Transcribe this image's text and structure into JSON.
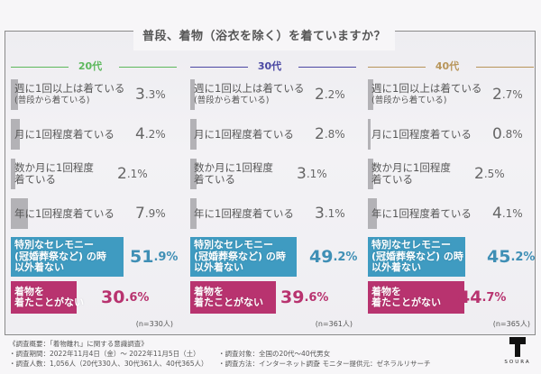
{
  "title": "普段、着物（浴衣を除く）を着ていますか？",
  "chart_data": {
    "type": "bar",
    "orientation": "horizontal",
    "title": "普段、着物（浴衣を除く）を着ていますか？",
    "unit": "%",
    "categories": [
      "週に1回以上は着ている（普段から着ている）",
      "月に1回程度着ている",
      "数か月に1回程度着ている",
      "年に1回程度着ている",
      "特別なセレモニー（冠婚葬祭など）の時以外着ない",
      "着物を着たことがない"
    ],
    "series": [
      {
        "name": "20代",
        "values": [
          3.3,
          4.2,
          2.1,
          7.9,
          51.9,
          30.6
        ],
        "n": "(n=330人)"
      },
      {
        "name": "30代",
        "values": [
          2.2,
          2.8,
          3.1,
          3.1,
          49.2,
          39.6
        ],
        "n": "(n=361人)"
      },
      {
        "name": "40代",
        "values": [
          2.7,
          0.8,
          2.5,
          4.1,
          45.2,
          44.7
        ],
        "n": "(n=365人)"
      }
    ]
  },
  "columns": [
    {
      "label": "20代",
      "color": "#5cb85c",
      "n": "(n=330人)",
      "rows": [
        {
          "line1": "週に1回以上は着ている",
          "line2": "(普段から着ている)",
          "int": "3",
          "dec": ".3%",
          "value": 3.3,
          "style": "gray"
        },
        {
          "line1": "月に1回程度着ている",
          "line2": "",
          "int": "4",
          "dec": ".2%",
          "value": 4.2,
          "style": "gray"
        },
        {
          "line1": "数か月に1回程度",
          "line2": "着ている",
          "int": "2",
          "dec": ".1%",
          "value": 2.1,
          "style": "gray"
        },
        {
          "line1": "年に1回程度着ている",
          "line2": "",
          "int": "7",
          "dec": ".9%",
          "value": 7.9,
          "style": "gray"
        },
        {
          "line1": "特別なセレモニー",
          "line2": "(冠婚葬祭など) の時",
          "line3": "以外着ない",
          "int": "51",
          "dec": ".9%",
          "value": 51.9,
          "style": "blue"
        },
        {
          "line1": "着物を",
          "line2": "着たことがない",
          "int": "30",
          "dec": ".6%",
          "value": 30.6,
          "style": "pink"
        }
      ]
    },
    {
      "label": "30代",
      "color": "#4a47a3",
      "n": "(n=361人)",
      "rows": [
        {
          "line1": "週に1回以上は着ている",
          "line2": "(普段から着ている)",
          "int": "2",
          "dec": ".2%",
          "value": 2.2,
          "style": "gray"
        },
        {
          "line1": "月に1回程度着ている",
          "line2": "",
          "int": "2",
          "dec": ".8%",
          "value": 2.8,
          "style": "gray"
        },
        {
          "line1": "数か月に1回程度",
          "line2": "着ている",
          "int": "3",
          "dec": ".1%",
          "value": 3.1,
          "style": "gray"
        },
        {
          "line1": "年に1回程度着ている",
          "line2": "",
          "int": "3",
          "dec": ".1%",
          "value": 3.1,
          "style": "gray"
        },
        {
          "line1": "特別なセレモニー",
          "line2": "(冠婚葬祭など) の時",
          "line3": "以外着ない",
          "int": "49",
          "dec": ".2%",
          "value": 49.2,
          "style": "blue"
        },
        {
          "line1": "着物を",
          "line2": "着たことがない",
          "int": "39",
          "dec": ".6%",
          "value": 39.6,
          "style": "pink"
        }
      ]
    },
    {
      "label": "40代",
      "color": "#b8955a",
      "n": "(n=365人)",
      "rows": [
        {
          "line1": "週に1回以上は着ている",
          "line2": "(普段から着ている)",
          "int": "2",
          "dec": ".7%",
          "value": 2.7,
          "style": "gray"
        },
        {
          "line1": "月に1回程度着ている",
          "line2": "",
          "int": "0",
          "dec": ".8%",
          "value": 0.8,
          "style": "gray"
        },
        {
          "line1": "数か月に1回程度",
          "line2": "着ている",
          "int": "2",
          "dec": ".5%",
          "value": 2.5,
          "style": "gray"
        },
        {
          "line1": "年に1回程度着ている",
          "line2": "",
          "int": "4",
          "dec": ".1%",
          "value": 4.1,
          "style": "gray"
        },
        {
          "line1": "特別なセレモニー",
          "line2": "(冠婚葬祭など) の時",
          "line3": "以外着ない",
          "int": "45",
          "dec": ".2%",
          "value": 45.2,
          "style": "blue"
        },
        {
          "line1": "着物を",
          "line2": "着たことがない",
          "int": "44",
          "dec": ".7%",
          "value": 44.7,
          "style": "pink"
        }
      ]
    }
  ],
  "footer": {
    "heading": "《調査概要：「着物離れ」に関する意識調査》",
    "period": "・調査期間：2022年11月4日（金）～ 2022年11月5日（土）",
    "count": "・調査人数：1,056人（20代330人、30代361人、40代365人）",
    "target": "・調査対象：全国の20代～40代男女",
    "method": "・調査方法：インターネット調査",
    "monitor": "・モニター提供元：ゼネラルリサーチ"
  },
  "logo": {
    "text": "SOURA"
  }
}
